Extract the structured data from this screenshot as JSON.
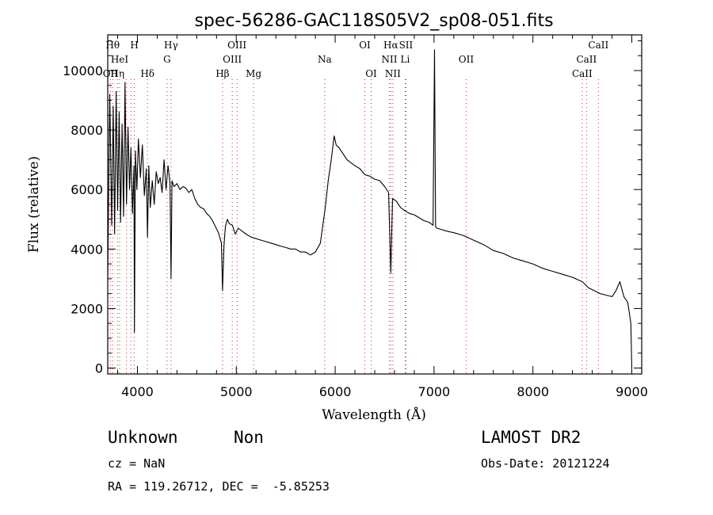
{
  "chart_data": {
    "type": "line",
    "title": "spec-56286-GAC118S05V2_sp08-051.fits",
    "xlabel": "Wavelength (Å)",
    "ylabel": "Flux (relative)",
    "xlim": [
      3700,
      9100
    ],
    "ylim": [
      -200,
      11200
    ],
    "x_ticks": [
      4000,
      5000,
      6000,
      7000,
      8000,
      9000
    ],
    "y_ticks": [
      0,
      2000,
      4000,
      6000,
      8000,
      10000
    ],
    "series": [
      {
        "x": [
          3700,
          3720,
          3740,
          3755,
          3770,
          3785,
          3800,
          3815,
          3830,
          3845,
          3860,
          3875,
          3890,
          3905,
          3920,
          3935,
          3950,
          3965,
          3970,
          3980,
          3995,
          4010,
          4030,
          4050,
          4070,
          4090,
          4102,
          4115,
          4130,
          4150,
          4170,
          4190,
          4210,
          4230,
          4250,
          4270,
          4290,
          4310,
          4330,
          4340,
          4350,
          4370,
          4400,
          4430,
          4460,
          4490,
          4520,
          4550,
          4580,
          4610,
          4640,
          4670,
          4700,
          4730,
          4760,
          4790,
          4820,
          4850,
          4861,
          4875,
          4890,
          4910,
          4930,
          4960,
          4990,
          5020,
          5060,
          5100,
          5150,
          5200,
          5250,
          5300,
          5350,
          5400,
          5450,
          5500,
          5550,
          5600,
          5650,
          5700,
          5750,
          5800,
          5850,
          5900,
          5930,
          5960,
          5990,
          6010,
          6040,
          6080,
          6120,
          6160,
          6200,
          6250,
          6300,
          6350,
          6400,
          6450,
          6500,
          6540,
          6563,
          6580,
          6620,
          6660,
          6700,
          6750,
          6800,
          6850,
          6900,
          6950,
          6990,
          7005,
          7015,
          7030,
          7080,
          7130,
          7200,
          7300,
          7400,
          7500,
          7600,
          7700,
          7800,
          7900,
          8000,
          8100,
          8200,
          8300,
          8400,
          8500,
          8560,
          8620,
          8680,
          8740,
          8800,
          8840,
          8880,
          8920,
          8960,
          8990,
          9000
        ],
        "y": [
          3000,
          9200,
          4800,
          8800,
          4500,
          9300,
          5300,
          8600,
          4900,
          8200,
          5100,
          9600,
          5500,
          8100,
          6000,
          7400,
          5200,
          6800,
          1200,
          7300,
          6000,
          7700,
          6400,
          7500,
          5800,
          6700,
          4400,
          6800,
          5400,
          6300,
          5500,
          6600,
          6200,
          6400,
          5900,
          7000,
          6000,
          6800,
          6200,
          3000,
          6300,
          6100,
          6200,
          6000,
          6100,
          6050,
          5900,
          6000,
          5700,
          5500,
          5400,
          5350,
          5200,
          5100,
          4950,
          4750,
          4550,
          4200,
          2600,
          4100,
          4750,
          5000,
          4850,
          4800,
          4500,
          4700,
          4600,
          4500,
          4400,
          4350,
          4300,
          4250,
          4200,
          4150,
          4100,
          4050,
          4000,
          4000,
          3900,
          3900,
          3800,
          3900,
          4200,
          5400,
          6300,
          7000,
          7800,
          7500,
          7400,
          7200,
          7000,
          6900,
          6800,
          6700,
          6500,
          6450,
          6350,
          6300,
          6100,
          5900,
          3200,
          5700,
          5600,
          5400,
          5300,
          5200,
          5150,
          5050,
          4950,
          4900,
          4800,
          10700,
          4750,
          4700,
          4650,
          4600,
          4550,
          4450,
          4300,
          4150,
          3950,
          3850,
          3700,
          3600,
          3500,
          3350,
          3250,
          3150,
          3050,
          2900,
          2700,
          2600,
          2500,
          2450,
          2400,
          2600,
          2900,
          2400,
          2200,
          1500,
          0
        ]
      }
    ],
    "lines": [
      {
        "wl": 3727,
        "label": "OII",
        "row": 2
      },
      {
        "wl": 3750,
        "label": "Hθ",
        "row": 0
      },
      {
        "wl": 3798,
        "label": "Hη",
        "row": 2
      },
      {
        "wl": 3820,
        "label": "HeI",
        "row": 1
      },
      {
        "wl": 3889,
        "label": "",
        "row": 0
      },
      {
        "wl": 3934,
        "label": "",
        "row": 0
      },
      {
        "wl": 3969,
        "label": "H",
        "row": 0
      },
      {
        "wl": 4102,
        "label": "Hδ",
        "row": 2
      },
      {
        "wl": 4300,
        "label": "G",
        "row": 1
      },
      {
        "wl": 4340,
        "label": "Hγ",
        "row": 0
      },
      {
        "wl": 4861,
        "label": "Hβ",
        "row": 2
      },
      {
        "wl": 4959,
        "label": "OIII",
        "row": 1
      },
      {
        "wl": 5007,
        "label": "OIII",
        "row": 0
      },
      {
        "wl": 5175,
        "label": "Mg",
        "row": 2
      },
      {
        "wl": 5894,
        "label": "Na",
        "row": 1
      },
      {
        "wl": 6300,
        "label": "OI",
        "row": 0
      },
      {
        "wl": 6364,
        "label": "OI",
        "row": 2
      },
      {
        "wl": 6548,
        "label": "NII",
        "row": 1
      },
      {
        "wl": 6563,
        "label": "Hα",
        "row": 0
      },
      {
        "wl": 6583,
        "label": "NII",
        "row": 2
      },
      {
        "wl": 6716,
        "label": "SII",
        "row": 0
      },
      {
        "wl": 6708,
        "label": "Li",
        "row": 1
      },
      {
        "wl": 7325,
        "label": "OII",
        "row": 1
      },
      {
        "wl": 8498,
        "label": "CaII",
        "row": 2
      },
      {
        "wl": 8542,
        "label": "CaII",
        "row": 1
      },
      {
        "wl": 8662,
        "label": "CaII",
        "row": 0
      }
    ]
  },
  "info": {
    "class_label": "Unknown",
    "subclass_label": "Non",
    "survey": "LAMOST DR2",
    "redshift": "cz = NaN",
    "obs_date": "Obs-Date: 20121224",
    "coords": "RA = 119.26712, DEC =  -5.85253"
  }
}
